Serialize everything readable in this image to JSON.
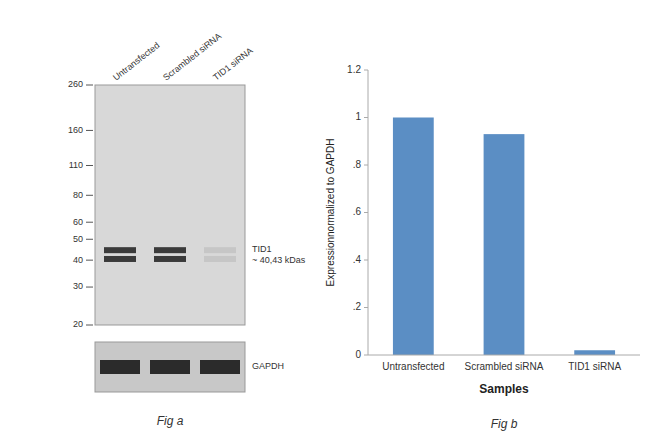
{
  "chart_data": [
    {
      "type": "western_blot",
      "categories": [
        "Untransfected",
        "Scrambled siRNA",
        "TID1 siRNA"
      ],
      "log": "y",
      "ylim": [
        20,
        260
      ],
      "yticks": [
        260,
        160,
        110,
        80,
        60,
        50,
        40,
        30,
        20
      ],
      "band_kda": [
        44.5,
        40.5
      ],
      "colors": [
        "#3a3a3a",
        "#3a3a3a",
        "#c6c6c6"
      ],
      "annotations": [
        "TID1\n~ 40,43 kDas",
        "GAPDH",
        "Fig a"
      ]
    },
    {
      "type": "bar",
      "categories": [
        "Untransfected",
        "Scrambled siRNA",
        "TID1 siRNA"
      ],
      "values": [
        1.0,
        0.93,
        0.02
      ],
      "color": "#5b8ec4",
      "xlabel": "Samples",
      "ylabel": "Expressionnormalized to GAPDH",
      "ylim": [
        0,
        1.2
      ],
      "yticks": [
        0,
        {
          "value": 0.2,
          "label": ".2"
        },
        {
          "value": 0.4,
          "label": ".4"
        },
        {
          "value": 0.6,
          "label": ".6"
        },
        {
          "value": 0.8,
          "label": ".8"
        },
        1,
        1.2
      ],
      "grid": false,
      "annotations": [
        "Fig b"
      ]
    }
  ]
}
